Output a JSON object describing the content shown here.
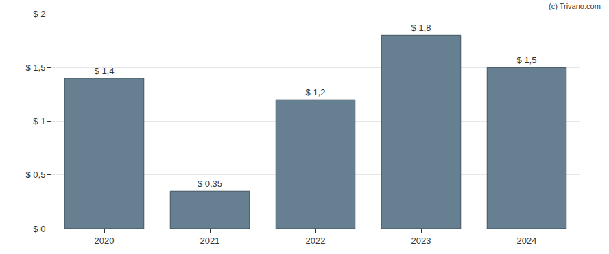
{
  "chart_data": {
    "type": "bar",
    "categories": [
      "2020",
      "2021",
      "2022",
      "2023",
      "2024"
    ],
    "values": [
      1.4,
      0.35,
      1.2,
      1.8,
      1.5
    ],
    "value_labels": [
      "$ 1,4",
      "$ 0,35",
      "$ 1,2",
      "$ 1,8",
      "$ 1,5"
    ],
    "data_labels": true,
    "color": "#668092",
    "ylim": [
      0,
      2
    ],
    "yticks": [
      {
        "value": 0,
        "label": "$ 0"
      },
      {
        "value": 0.5,
        "label": "$ 0,5"
      },
      {
        "value": 1,
        "label": "$ 1"
      },
      {
        "value": 1.5,
        "label": "$ 1,5"
      },
      {
        "value": 2,
        "label": "$ 2"
      }
    ],
    "grid": true,
    "annotations": [
      "(c) Trivano.com"
    ]
  }
}
